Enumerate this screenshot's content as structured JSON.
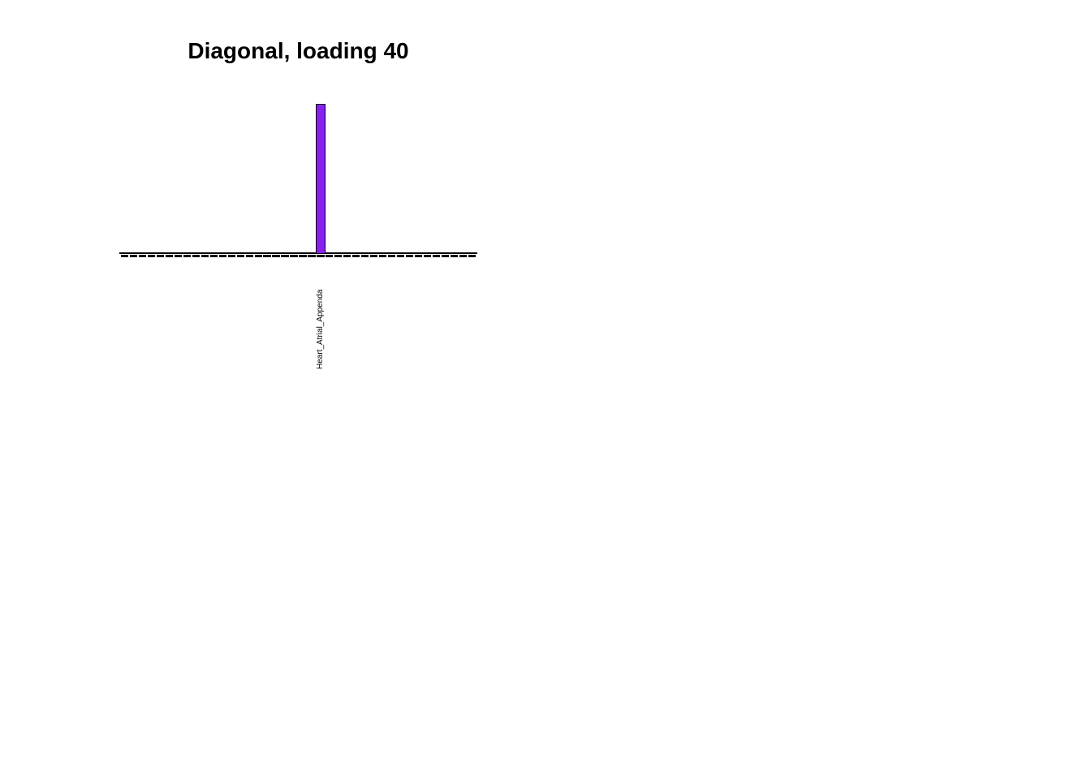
{
  "figure": {
    "title": "Diagonal, loading 40",
    "background": "#FFFFFF"
  },
  "chart_data": {
    "type": "bar",
    "title": "Diagonal, loading 40",
    "xlabel": "",
    "ylabel": "",
    "grid": false,
    "y_axis_visible": false,
    "x_axis_visible": true,
    "x_tick_label_rotation": 90,
    "n_bars": 40,
    "ylim": [
      0,
      1.0
    ],
    "bar_fill_color": "#8A20F0",
    "bar_border_color": "#000000",
    "axis_color": "#000000",
    "highlight": {
      "index": 22,
      "label": "Heart_Atrial_Appenda",
      "value": 1.0
    },
    "categories": [
      "",
      "",
      "",
      "",
      "",
      "",
      "",
      "",
      "",
      "",
      "",
      "",
      "",
      "",
      "",
      "",
      "",
      "",
      "",
      "",
      "",
      "",
      "Heart_Atrial_Appenda",
      "",
      "",
      "",
      "",
      "",
      "",
      "",
      "",
      "",
      "",
      "",
      "",
      "",
      "",
      "",
      "",
      ""
    ],
    "values": [
      0,
      0,
      0,
      0,
      0,
      0,
      0,
      0,
      0,
      0,
      0,
      0,
      0,
      0,
      0,
      0,
      0,
      0,
      0,
      0,
      0,
      0,
      1.0,
      0,
      0,
      0,
      0,
      0,
      0,
      0,
      0,
      0,
      0,
      0,
      0,
      0,
      0,
      0,
      0,
      0
    ]
  }
}
